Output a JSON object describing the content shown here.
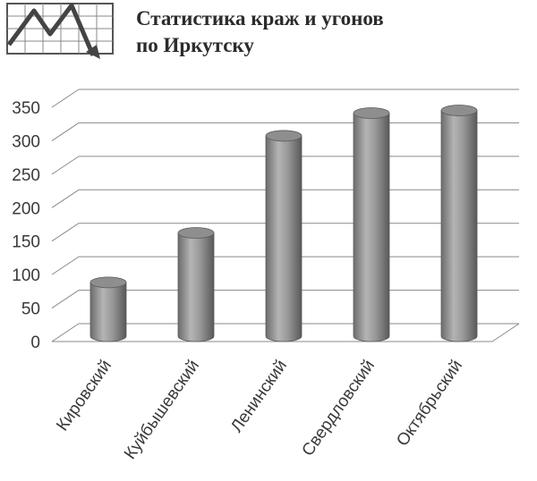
{
  "chart_data": {
    "type": "bar",
    "style": "3d-cylinder",
    "title_lines": [
      "Статистика краж и угонов",
      "по Иркутску"
    ],
    "categories": [
      "Кировский",
      "Куйбышевский",
      "Ленинский",
      "Свердловский",
      "Октябрьский"
    ],
    "values": [
      83,
      157,
      302,
      336,
      340
    ],
    "ylim": [
      0,
      350
    ],
    "yticks": [
      0,
      50,
      100,
      150,
      200,
      250,
      300,
      350
    ],
    "grid": true,
    "bar_color": "#9a9a9a",
    "logo_icon": "line-chart-logo-icon"
  }
}
